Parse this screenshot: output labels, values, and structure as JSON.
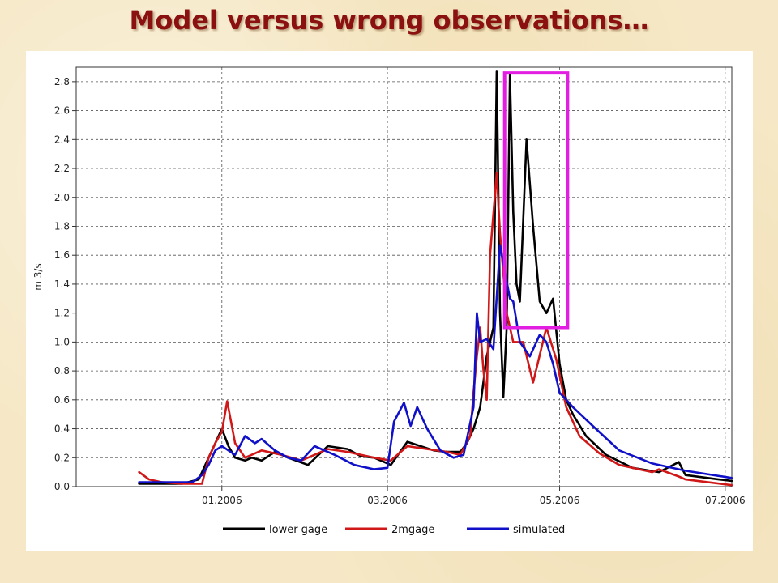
{
  "slide": {
    "title": "Model versus wrong observations…"
  },
  "chart_data": {
    "type": "line",
    "title": "",
    "xlabel": "",
    "ylabel": "m 3/s",
    "xlim": [
      -2.2,
      7.7
    ],
    "ylim": [
      0.0,
      2.9
    ],
    "grid": true,
    "legend_position": "bottom",
    "x_ticks": [
      {
        "value": 0.0,
        "label": "01.2006"
      },
      {
        "value": 2.5,
        "label": "03.2006"
      },
      {
        "value": 5.1,
        "label": "05.2006"
      },
      {
        "value": 7.6,
        "label": "07.2006"
      }
    ],
    "y_ticks": [
      {
        "value": 0.0,
        "label": "0.0"
      },
      {
        "value": 0.2,
        "label": "0.2"
      },
      {
        "value": 0.4,
        "label": "0.4"
      },
      {
        "value": 0.6,
        "label": "0.6"
      },
      {
        "value": 0.8,
        "label": "0.8"
      },
      {
        "value": 1.0,
        "label": "1.0"
      },
      {
        "value": 1.2,
        "label": "1.2"
      },
      {
        "value": 1.4,
        "label": "1.4"
      },
      {
        "value": 1.6,
        "label": "1.6"
      },
      {
        "value": 1.8,
        "label": "1.8"
      },
      {
        "value": 2.0,
        "label": "2.0"
      },
      {
        "value": 2.2,
        "label": "2.2"
      },
      {
        "value": 2.4,
        "label": "2.4"
      },
      {
        "value": 2.6,
        "label": "2.6"
      },
      {
        "value": 2.8,
        "label": "2.8"
      }
    ],
    "series": [
      {
        "name": "lower gage",
        "color": "#000000",
        "x": [
          -1.25,
          -0.6,
          -0.35,
          -0.2,
          -0.1,
          0.0,
          0.1,
          0.2,
          0.35,
          0.45,
          0.6,
          0.8,
          1.0,
          1.3,
          1.6,
          1.9,
          2.1,
          2.3,
          2.4,
          2.45,
          2.55,
          2.8,
          3.0,
          3.2,
          3.4,
          3.6,
          3.7,
          3.8,
          3.9,
          4.0,
          4.1,
          4.15,
          4.2,
          4.25,
          4.3,
          4.35,
          4.4,
          4.45,
          4.5,
          4.6,
          4.7,
          4.8,
          4.9,
          5.0,
          5.1,
          5.2,
          5.3,
          5.5,
          5.8,
          6.2,
          6.6,
          6.9,
          7.0,
          7.5,
          7.7
        ],
        "y": [
          0.02,
          0.02,
          0.05,
          0.2,
          0.3,
          0.4,
          0.28,
          0.2,
          0.18,
          0.2,
          0.18,
          0.24,
          0.2,
          0.15,
          0.28,
          0.26,
          0.21,
          0.2,
          0.18,
          0.17,
          0.15,
          0.31,
          0.28,
          0.25,
          0.24,
          0.24,
          0.3,
          0.4,
          0.55,
          0.9,
          1.1,
          2.87,
          1.2,
          0.62,
          1.1,
          2.85,
          1.9,
          1.4,
          1.28,
          2.4,
          1.8,
          1.28,
          1.2,
          1.3,
          0.85,
          0.6,
          0.5,
          0.35,
          0.22,
          0.13,
          0.1,
          0.17,
          0.08,
          0.05,
          0.04
        ]
      },
      {
        "name": "2mgage",
        "color": "#d01818",
        "x": [
          -1.25,
          -1.1,
          -0.9,
          -0.6,
          -0.3,
          -0.2,
          -0.1,
          0.0,
          0.08,
          0.2,
          0.35,
          0.6,
          0.9,
          1.2,
          1.6,
          1.9,
          2.3,
          2.55,
          2.8,
          3.1,
          3.4,
          3.6,
          3.75,
          3.8,
          3.85,
          3.9,
          3.95,
          4.0,
          4.05,
          4.15,
          4.2,
          4.3,
          4.4,
          4.55,
          4.7,
          4.9,
          5.05,
          5.2,
          5.4,
          5.7,
          6.0,
          6.3,
          6.5,
          6.6,
          6.9,
          7.0,
          7.7
        ],
        "y": [
          0.1,
          0.05,
          0.03,
          0.02,
          0.02,
          0.2,
          0.3,
          0.38,
          0.59,
          0.3,
          0.2,
          0.25,
          0.22,
          0.18,
          0.26,
          0.24,
          0.2,
          0.18,
          0.28,
          0.26,
          0.24,
          0.22,
          0.35,
          0.65,
          0.9,
          1.1,
          0.8,
          0.6,
          1.6,
          2.17,
          1.75,
          1.2,
          1.0,
          1.0,
          0.72,
          1.1,
          0.88,
          0.55,
          0.35,
          0.23,
          0.15,
          0.12,
          0.1,
          0.12,
          0.07,
          0.05,
          0.01
        ]
      },
      {
        "name": "simulated",
        "color": "#1010c8",
        "x": [
          -1.25,
          -0.8,
          -0.45,
          -0.3,
          -0.2,
          -0.1,
          0.0,
          0.2,
          0.35,
          0.5,
          0.6,
          0.8,
          1.0,
          1.2,
          1.4,
          1.7,
          2.0,
          2.3,
          2.5,
          2.6,
          2.75,
          2.85,
          2.95,
          3.1,
          3.3,
          3.5,
          3.65,
          3.8,
          3.85,
          3.9,
          4.0,
          4.1,
          4.2,
          4.35,
          4.4,
          4.5,
          4.65,
          4.8,
          4.9,
          5.0,
          5.1,
          5.3,
          5.6,
          6.0,
          6.5,
          7.0,
          7.7
        ],
        "y": [
          0.03,
          0.03,
          0.03,
          0.08,
          0.15,
          0.25,
          0.28,
          0.22,
          0.35,
          0.3,
          0.33,
          0.25,
          0.2,
          0.18,
          0.28,
          0.22,
          0.15,
          0.12,
          0.13,
          0.45,
          0.58,
          0.42,
          0.55,
          0.4,
          0.25,
          0.2,
          0.22,
          0.55,
          1.2,
          1.0,
          1.02,
          0.95,
          1.67,
          1.3,
          1.28,
          1.0,
          0.9,
          1.05,
          1.0,
          0.85,
          0.65,
          0.55,
          0.42,
          0.25,
          0.16,
          0.11,
          0.06
        ]
      }
    ],
    "annotation": {
      "type": "rectangle",
      "color": "#e31ee3",
      "x_range": [
        4.27,
        5.22
      ],
      "y_range": [
        1.1,
        2.86
      ]
    }
  }
}
